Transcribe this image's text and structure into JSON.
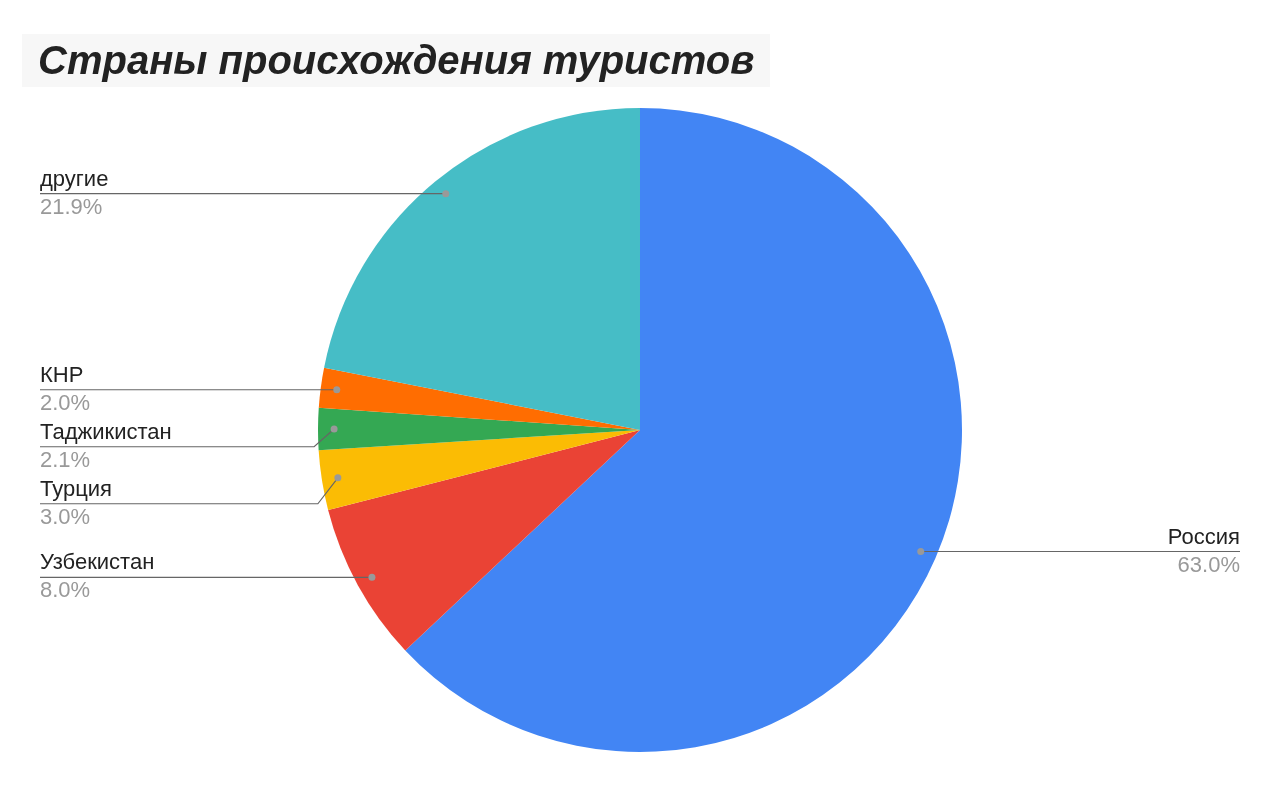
{
  "chart_data": {
    "type": "pie",
    "title": "Страны происхождения туристов",
    "categories": [
      "Россия",
      "Узбекистан",
      "Турция",
      "Таджикистан",
      "КНР",
      "другие"
    ],
    "values": [
      63.0,
      8.0,
      3.0,
      2.1,
      2.0,
      21.9
    ],
    "value_labels": [
      "63.0%",
      "8.0%",
      "3.0%",
      "2.1%",
      "2.0%",
      "21.9%"
    ],
    "colors": [
      "#4285f4",
      "#ea4335",
      "#fbbc04",
      "#34a853",
      "#ff6d01",
      "#46bdc6"
    ],
    "legend": false
  }
}
